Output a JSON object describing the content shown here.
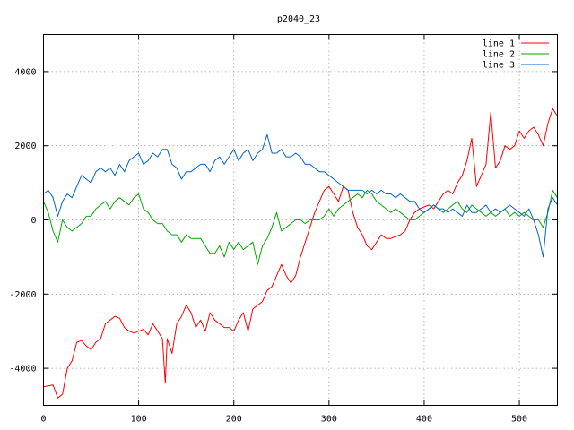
{
  "chart_data": {
    "type": "line",
    "title": "p2040_23",
    "xlabel": "",
    "ylabel": "",
    "xlim": [
      0,
      540
    ],
    "ylim": [
      -5000,
      5000
    ],
    "x_ticks": [
      0,
      100,
      200,
      300,
      400,
      500
    ],
    "y_ticks": [
      -4000,
      -2000,
      0,
      2000,
      4000
    ],
    "x_tick_labels": [
      "0",
      "100",
      "200",
      "300",
      "400",
      "500"
    ],
    "y_tick_labels": [
      "-4000",
      "-2000",
      "0",
      "2000",
      "4000"
    ],
    "grid": true,
    "legend_position": "top-right",
    "series": [
      {
        "name": "line 1",
        "color": "#ff0000",
        "x": [
          0,
          10,
          15,
          20,
          25,
          30,
          35,
          40,
          45,
          50,
          55,
          60,
          65,
          70,
          75,
          80,
          85,
          90,
          95,
          100,
          105,
          110,
          115,
          120,
          125,
          128,
          130,
          135,
          140,
          145,
          150,
          155,
          160,
          165,
          170,
          175,
          180,
          185,
          190,
          195,
          200,
          205,
          210,
          215,
          220,
          225,
          230,
          235,
          240,
          245,
          250,
          255,
          260,
          265,
          270,
          275,
          280,
          285,
          290,
          295,
          300,
          305,
          310,
          315,
          320,
          325,
          330,
          335,
          340,
          345,
          350,
          355,
          360,
          365,
          370,
          375,
          380,
          385,
          390,
          395,
          400,
          405,
          410,
          415,
          420,
          425,
          430,
          435,
          440,
          445,
          450,
          455,
          460,
          465,
          470,
          475,
          480,
          485,
          490,
          495,
          500,
          505,
          510,
          515,
          520,
          525,
          530,
          535,
          540
        ],
        "y": [
          -4500,
          -4450,
          -4800,
          -4700,
          -4000,
          -3800,
          -3300,
          -3250,
          -3400,
          -3500,
          -3300,
          -3200,
          -2800,
          -2700,
          -2600,
          -2650,
          -2900,
          -3000,
          -3050,
          -3000,
          -2950,
          -3100,
          -2800,
          -3000,
          -3200,
          -4400,
          -3200,
          -3600,
          -2800,
          -2600,
          -2300,
          -2500,
          -2900,
          -2700,
          -3000,
          -2500,
          -2700,
          -2800,
          -2900,
          -2900,
          -3000,
          -2700,
          -2500,
          -3000,
          -2400,
          -2300,
          -2200,
          -1900,
          -1800,
          -1500,
          -1200,
          -1500,
          -1700,
          -1500,
          -1000,
          -600,
          -200,
          200,
          500,
          800,
          900,
          700,
          500,
          900,
          800,
          200,
          -200,
          -400,
          -700,
          -800,
          -600,
          -400,
          -500,
          -500,
          -450,
          -400,
          -300,
          0,
          200,
          300,
          350,
          400,
          300,
          500,
          700,
          800,
          700,
          1000,
          1200,
          1600,
          2200,
          900,
          1200,
          1500,
          2900,
          1400,
          1600,
          2000,
          1900,
          2000,
          2400,
          2200,
          2400,
          2500,
          2300,
          2000,
          2600,
          3000,
          2800
        ]
      },
      {
        "name": "line 2",
        "color": "#00aa00",
        "x": [
          0,
          5,
          10,
          15,
          20,
          25,
          30,
          35,
          40,
          45,
          50,
          55,
          60,
          65,
          70,
          75,
          80,
          85,
          90,
          95,
          100,
          105,
          110,
          115,
          120,
          125,
          130,
          135,
          140,
          145,
          150,
          155,
          160,
          165,
          170,
          175,
          180,
          185,
          190,
          195,
          200,
          205,
          210,
          215,
          220,
          225,
          230,
          235,
          240,
          245,
          250,
          255,
          260,
          265,
          270,
          275,
          280,
          285,
          290,
          295,
          300,
          305,
          310,
          315,
          320,
          325,
          330,
          335,
          340,
          345,
          350,
          355,
          360,
          365,
          370,
          375,
          380,
          385,
          390,
          395,
          400,
          405,
          410,
          415,
          420,
          425,
          430,
          435,
          440,
          445,
          450,
          455,
          460,
          465,
          470,
          475,
          480,
          485,
          490,
          495,
          500,
          505,
          510,
          515,
          520,
          525,
          530,
          535,
          540
        ],
        "y": [
          500,
          200,
          -300,
          -600,
          0,
          -200,
          -300,
          -200,
          -100,
          100,
          100,
          300,
          400,
          500,
          300,
          500,
          600,
          500,
          400,
          600,
          700,
          300,
          200,
          0,
          -100,
          -100,
          -300,
          -400,
          -400,
          -600,
          -400,
          -500,
          -500,
          -500,
          -700,
          -900,
          -900,
          -700,
          -1000,
          -600,
          -800,
          -600,
          -800,
          -700,
          -600,
          -1200,
          -700,
          -500,
          -200,
          200,
          -300,
          -200,
          -100,
          0,
          0,
          -100,
          0,
          0,
          0,
          100,
          300,
          100,
          300,
          400,
          500,
          600,
          700,
          600,
          800,
          700,
          500,
          400,
          300,
          200,
          300,
          200,
          100,
          0,
          0,
          100,
          200,
          300,
          400,
          300,
          200,
          300,
          400,
          500,
          300,
          200,
          400,
          300,
          200,
          100,
          200,
          100,
          200,
          300,
          100,
          200,
          100,
          200,
          100,
          0,
          0,
          -200,
          200,
          800,
          600
        ]
      },
      {
        "name": "line 3",
        "color": "#0066cc",
        "x": [
          0,
          5,
          10,
          15,
          20,
          25,
          30,
          35,
          40,
          45,
          50,
          55,
          60,
          65,
          70,
          75,
          80,
          85,
          90,
          95,
          100,
          105,
          110,
          115,
          120,
          125,
          130,
          135,
          140,
          145,
          150,
          155,
          160,
          165,
          170,
          175,
          180,
          185,
          190,
          195,
          200,
          205,
          210,
          215,
          220,
          225,
          230,
          235,
          240,
          245,
          250,
          255,
          260,
          265,
          270,
          275,
          280,
          285,
          290,
          295,
          300,
          305,
          310,
          315,
          320,
          325,
          330,
          335,
          340,
          345,
          350,
          355,
          360,
          365,
          370,
          375,
          380,
          385,
          390,
          395,
          400,
          405,
          410,
          415,
          420,
          425,
          430,
          435,
          440,
          445,
          450,
          455,
          460,
          465,
          470,
          475,
          480,
          485,
          490,
          495,
          500,
          505,
          510,
          515,
          520,
          525,
          530,
          535,
          540
        ],
        "y": [
          700,
          800,
          600,
          100,
          500,
          700,
          600,
          900,
          1200,
          1100,
          1000,
          1300,
          1400,
          1300,
          1400,
          1200,
          1500,
          1300,
          1600,
          1700,
          1800,
          1500,
          1600,
          1800,
          1700,
          1900,
          1900,
          1500,
          1400,
          1100,
          1300,
          1300,
          1400,
          1500,
          1500,
          1300,
          1600,
          1700,
          1500,
          1700,
          1900,
          1600,
          1800,
          1900,
          1600,
          1800,
          1900,
          2300,
          1800,
          1800,
          1900,
          1700,
          1700,
          1800,
          1700,
          1500,
          1500,
          1400,
          1300,
          1300,
          1200,
          1100,
          1000,
          900,
          800,
          800,
          800,
          800,
          700,
          800,
          700,
          800,
          700,
          700,
          600,
          700,
          600,
          500,
          500,
          300,
          200,
          300,
          400,
          300,
          300,
          200,
          300,
          200,
          100,
          400,
          200,
          200,
          300,
          400,
          200,
          300,
          200,
          300,
          400,
          300,
          200,
          100,
          300,
          0,
          -400,
          -1000,
          300,
          600,
          400
        ]
      }
    ]
  }
}
